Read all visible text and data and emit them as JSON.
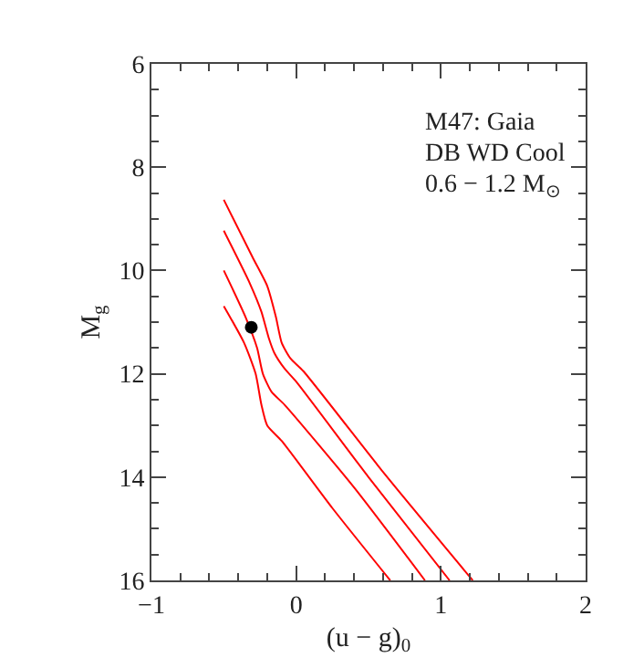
{
  "chart_data": {
    "type": "line",
    "xlabel": "(u − g)$_{0}$",
    "ylabel": "M$_{g}$",
    "annotations": [
      "M47: Gaia",
      "DB WD Cool",
      "0.6 − 1.2 M$_{⊙}$"
    ],
    "xlim": [
      -1,
      2
    ],
    "xticks": [
      {
        "value": -1,
        "label": "−1"
      },
      0,
      1,
      2
    ],
    "ylim": [
      16,
      6
    ],
    "yticks": [
      6,
      8,
      10,
      12,
      14,
      16
    ],
    "series": [
      {
        "color": "#ff0000",
        "x": [
          -0.5,
          -0.3,
          -0.2,
          -0.14,
          -0.1,
          -0.04,
          0.05,
          0.6,
          1.22
        ],
        "values": [
          8.63,
          9.75,
          10.3,
          10.9,
          11.4,
          11.7,
          11.95,
          13.9,
          16
        ]
      },
      {
        "color": "#ff0000",
        "x": [
          -0.5,
          -0.32,
          -0.24,
          -0.19,
          -0.15,
          -0.08,
          0.0,
          0.5,
          1.06
        ],
        "values": [
          9.23,
          10.25,
          10.8,
          11.3,
          11.6,
          11.9,
          12.15,
          14.0,
          16
        ]
      },
      {
        "color": "#ff0000",
        "x": [
          -0.5,
          -0.35,
          -0.27,
          -0.23,
          -0.17,
          -0.08,
          0.4,
          0.89
        ],
        "values": [
          10.0,
          10.9,
          11.5,
          12.0,
          12.35,
          12.6,
          14.2,
          16
        ]
      },
      {
        "color": "#ff0000",
        "x": [
          -0.5,
          -0.36,
          -0.28,
          -0.24,
          -0.2,
          -0.1,
          0.25,
          0.65
        ],
        "values": [
          10.69,
          11.4,
          12.0,
          12.6,
          13.0,
          13.3,
          14.6,
          16
        ]
      },
      {
        "type": "scatter",
        "color": "#000000",
        "marker": "circle",
        "x": [
          -0.31
        ],
        "values": [
          11.1
        ]
      }
    ]
  }
}
